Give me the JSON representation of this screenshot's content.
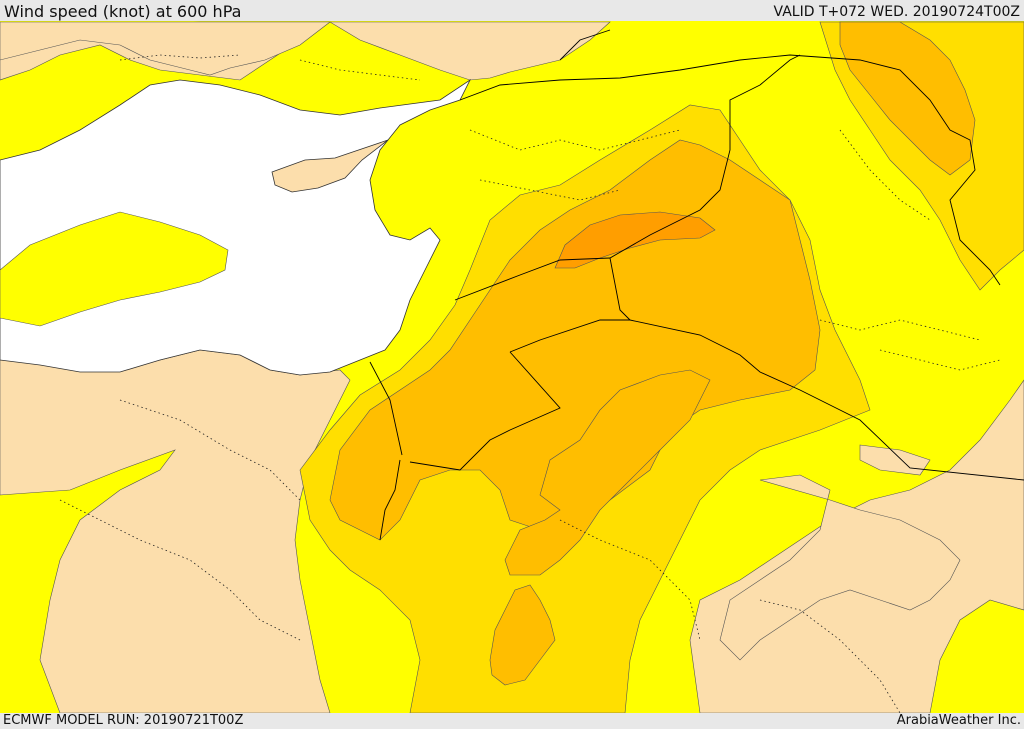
{
  "header": {
    "title": "Wind speed (knot) at 600 hPa",
    "valid_time": "VALID T+072 WED. 20190724T00Z"
  },
  "footer": {
    "model_run": "ECMWF MODEL RUN: 20190721T00Z",
    "credit": "ArabiaWeather Inc."
  },
  "map": {
    "region": "Eastern Mediterranean / Levant / Middle East",
    "legend_bands_colors": {
      "calm": "#fcdeac",
      "band_1": "#ffff00",
      "band_2": "#ffdf00",
      "band_3": "#ffbe00",
      "band_4": "#ff9e00"
    },
    "sea_color": "#ffffff",
    "boundary_style": "solid black national borders, dotted provincial lines"
  }
}
